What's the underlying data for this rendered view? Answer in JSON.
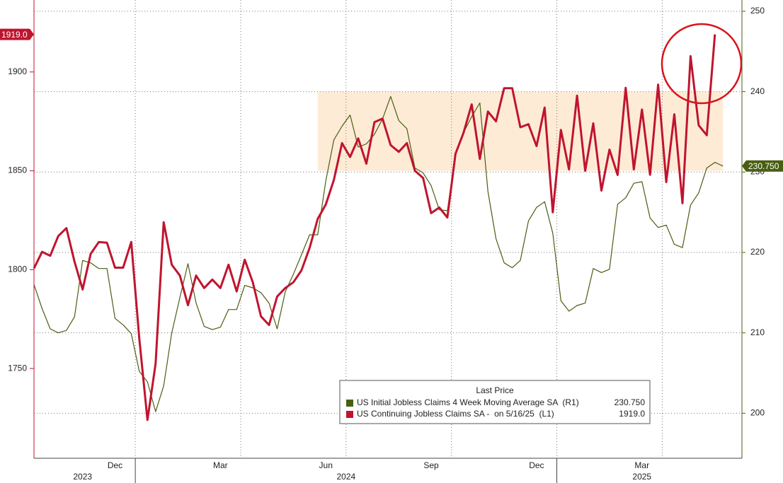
{
  "chart_data": {
    "type": "line",
    "categories": [
      null,
      null,
      null,
      null,
      null,
      null,
      null,
      null,
      null,
      null,
      "Dec",
      null,
      null,
      null,
      null,
      null,
      null,
      null,
      null,
      null,
      null,
      null,
      null,
      "Mar",
      null,
      null,
      null,
      null,
      null,
      null,
      null,
      null,
      null,
      null,
      null,
      null,
      "Jun",
      null,
      null,
      null,
      null,
      null,
      null,
      null,
      null,
      null,
      null,
      null,
      null,
      "Sep",
      null,
      null,
      null,
      null,
      null,
      null,
      null,
      null,
      null,
      null,
      null,
      null,
      "Dec",
      null,
      null,
      null,
      null,
      null,
      null,
      null,
      null,
      null,
      null,
      null,
      null,
      "Mar",
      null,
      null,
      null,
      null,
      null,
      null,
      null,
      null,
      null,
      null
    ],
    "years": [
      "2023",
      "2024",
      "2025"
    ],
    "year_starts": [
      0,
      13,
      65
    ],
    "series": [
      {
        "name": "US Initial Jobless Claims 4 Week Moving Average SA  (R1)",
        "color": "#4a5e12",
        "axis": "y2",
        "values": [
          216,
          213,
          210.5,
          210,
          210.3,
          212,
          219,
          218.7,
          218,
          218,
          211.8,
          211,
          209.9,
          205.2,
          203.9,
          200.2,
          203.4,
          210,
          214.4,
          218.6,
          213.7,
          210.8,
          210.4,
          210.7,
          212.9,
          212.9,
          215.9,
          215.6,
          215,
          213.7,
          210.5,
          215.1,
          217.3,
          219.7,
          222.2,
          222.2,
          228.9,
          234,
          235.7,
          237.1,
          233.1,
          233.5,
          234.7,
          236.6,
          239.4,
          236.4,
          235.4,
          230.5,
          229.9,
          228.3,
          225.3,
          225.2,
          232.2,
          234.9,
          236.9,
          238.6,
          227.6,
          221.7,
          218.7,
          218.1,
          219,
          223.9,
          225.6,
          226.3,
          222.4,
          214,
          212.7,
          213.4,
          213.7,
          218,
          217.5,
          217.9,
          226,
          226.8,
          228.6,
          228.8,
          224.3,
          223.1,
          223.4,
          221,
          220.6,
          225.9,
          227.4,
          230.5,
          231.2,
          230.75
        ],
        "last_value_label": "230.750"
      },
      {
        "name": "US Continuing Jobless Claims SA -  on 5/16/25  (L1)",
        "color": "#c0142e",
        "values": [
          1800.7,
          1809,
          1807,
          1817,
          1821,
          1804,
          1790,
          1808,
          1814,
          1813.6,
          1801,
          1801,
          1814,
          1765,
          1724,
          1752.5,
          1824,
          1802.5,
          1797,
          1782,
          1797,
          1790.7,
          1795,
          1790.7,
          1802.5,
          1789,
          1805,
          1793.6,
          1776.4,
          1772,
          1786.4,
          1790.7,
          1793.6,
          1799.6,
          1811,
          1825.7,
          1833,
          1845.4,
          1864,
          1857,
          1866.4,
          1853.6,
          1874.6,
          1876.4,
          1863,
          1859.6,
          1864,
          1850,
          1846.4,
          1828.6,
          1831.4,
          1826.4,
          1858.6,
          1869.3,
          1883.6,
          1856,
          1880,
          1875,
          1891.8,
          1891.8,
          1872,
          1873.6,
          1862.5,
          1882,
          1829,
          1870.7,
          1850.7,
          1888,
          1850,
          1874,
          1840,
          1860.7,
          1847.9,
          1892,
          1850.7,
          1881,
          1848,
          1893.6,
          1844.3,
          1878.6,
          1833.6,
          1908,
          1873,
          1868,
          1919,
          null
        ],
        "last_value_label": "1919.0"
      }
    ],
    "legend_title": "Last Price",
    "highlight": {
      "ylim": [
        1850,
        1890
      ],
      "x_index": [
        35,
        85
      ]
    },
    "ylim": [
      1704.6,
      1936.4
    ],
    "yticks": [
      1750,
      1800,
      1850,
      1900
    ],
    "y2lim": [
      194.4,
      251.4
    ],
    "y2ticks": [
      200,
      210,
      220,
      230,
      240,
      250
    ],
    "grid": true
  }
}
